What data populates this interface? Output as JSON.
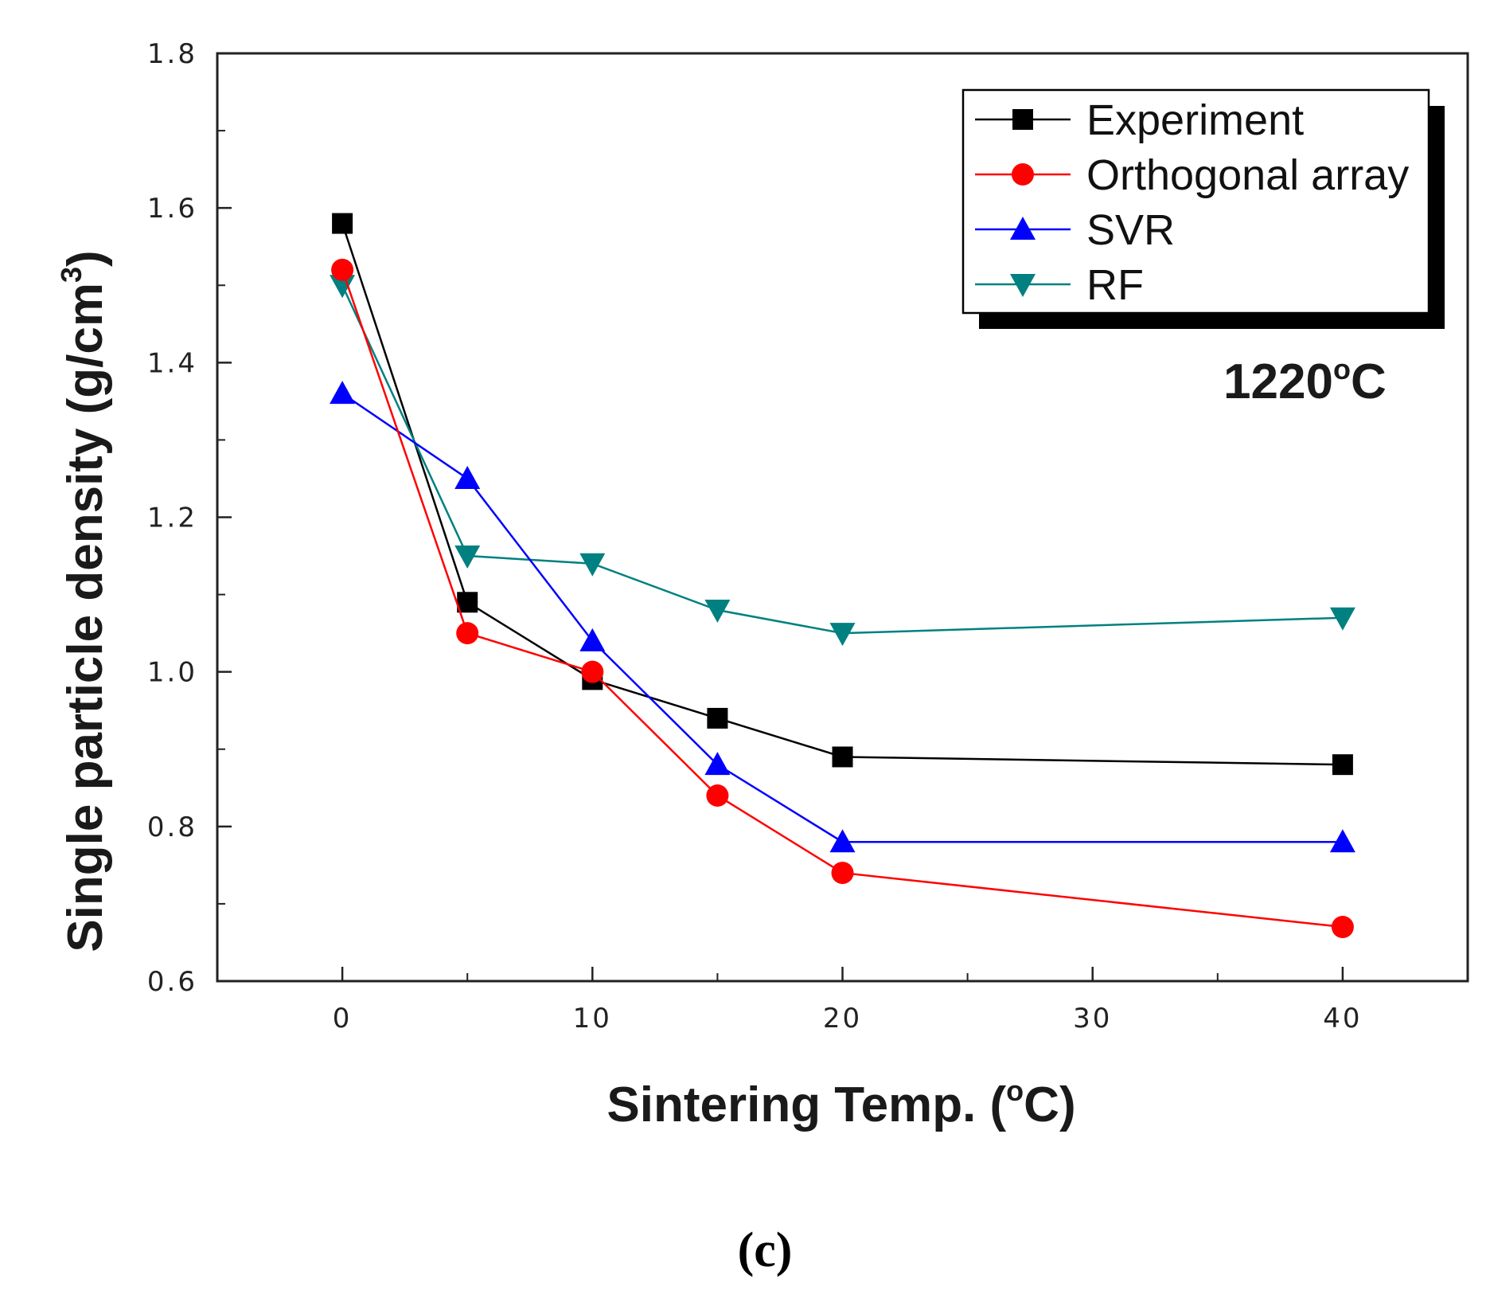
{
  "chart_data": {
    "type": "line",
    "title": "",
    "xlabel": "Sintering Temp. (",
    "xlabel_unit": "C)",
    "xlabel_sup": "o",
    "ylabel": "Single particle density (g/cm",
    "ylabel_sup": "3",
    "ylabel_end": ")",
    "xlim": [
      -5,
      45
    ],
    "ylim": [
      0.6,
      1.8
    ],
    "x_ticks": [
      0,
      10,
      20,
      30,
      40
    ],
    "x_tick_labels": [
      "0",
      "10",
      "20",
      "30",
      "40"
    ],
    "y_ticks": [
      0.6,
      0.8,
      1.0,
      1.2,
      1.4,
      1.6,
      1.8
    ],
    "y_tick_labels": [
      "0.6",
      "0.8",
      "1.0",
      "1.2",
      "1.4",
      "1.6",
      "1.8"
    ],
    "grid": false,
    "legend_position": "top-right",
    "annotation": {
      "text": "1220",
      "sup": "o",
      "unit": "C"
    },
    "caption": "(c)",
    "series": [
      {
        "name": "Experiment",
        "color": "#000000",
        "marker": "square",
        "x": [
          0,
          5,
          10,
          15,
          20,
          40
        ],
        "y": [
          1.58,
          1.09,
          0.99,
          0.94,
          0.89,
          0.88
        ]
      },
      {
        "name": "Orthogonal array",
        "color": "#ff0000",
        "marker": "circle",
        "x": [
          0,
          5,
          10,
          15,
          20,
          40
        ],
        "y": [
          1.52,
          1.05,
          1.0,
          0.84,
          0.74,
          0.67
        ]
      },
      {
        "name": "SVR",
        "color": "#0000ff",
        "marker": "triangle-up",
        "x": [
          0,
          5,
          10,
          15,
          20,
          40
        ],
        "y": [
          1.36,
          1.25,
          1.04,
          0.88,
          0.78,
          0.78
        ]
      },
      {
        "name": "RF",
        "color": "#008080",
        "marker": "triangle-down",
        "x": [
          0,
          5,
          10,
          15,
          20,
          40
        ],
        "y": [
          1.5,
          1.15,
          1.14,
          1.08,
          1.05,
          1.07
        ]
      }
    ]
  }
}
